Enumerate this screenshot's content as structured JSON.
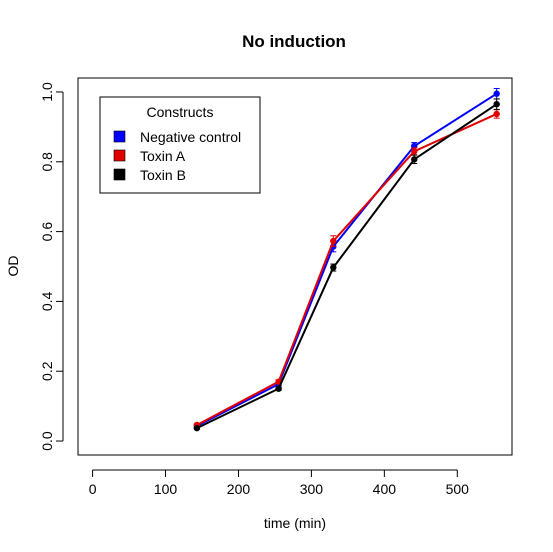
{
  "chart_data": {
    "type": "line",
    "title": "No induction",
    "xlabel": "time (min)",
    "ylabel": "OD",
    "xlim": [
      -20,
      575
    ],
    "ylim": [
      -0.04,
      1.04
    ],
    "x_ticks": [
      0,
      100,
      200,
      300,
      400,
      500
    ],
    "y_ticks": [
      0.0,
      0.2,
      0.4,
      0.6,
      0.8,
      1.0
    ],
    "x_tick_labels": [
      "0",
      "100",
      "200",
      "300",
      "400",
      "500"
    ],
    "y_tick_labels": [
      "0.0",
      "0.2",
      "0.4",
      "0.6",
      "0.8",
      "1.0"
    ],
    "grid": false,
    "legend": {
      "title": "Constructs",
      "placement": "top-left"
    },
    "x": [
      143,
      255,
      330,
      441,
      554
    ],
    "series": [
      {
        "name": "Negative control",
        "color": "#0000ff",
        "values": [
          0.043,
          0.163,
          0.557,
          0.845,
          0.995
        ],
        "errors": [
          0.004,
          0.005,
          0.015,
          0.01,
          0.015
        ]
      },
      {
        "name": "Toxin A",
        "color": "#e00000",
        "values": [
          0.046,
          0.17,
          0.573,
          0.83,
          0.937
        ],
        "errors": [
          0.004,
          0.005,
          0.015,
          0.01,
          0.012
        ]
      },
      {
        "name": "Toxin B",
        "color": "#000000",
        "values": [
          0.037,
          0.15,
          0.497,
          0.807,
          0.965
        ],
        "errors": [
          0.003,
          0.005,
          0.01,
          0.012,
          0.015
        ]
      }
    ]
  }
}
